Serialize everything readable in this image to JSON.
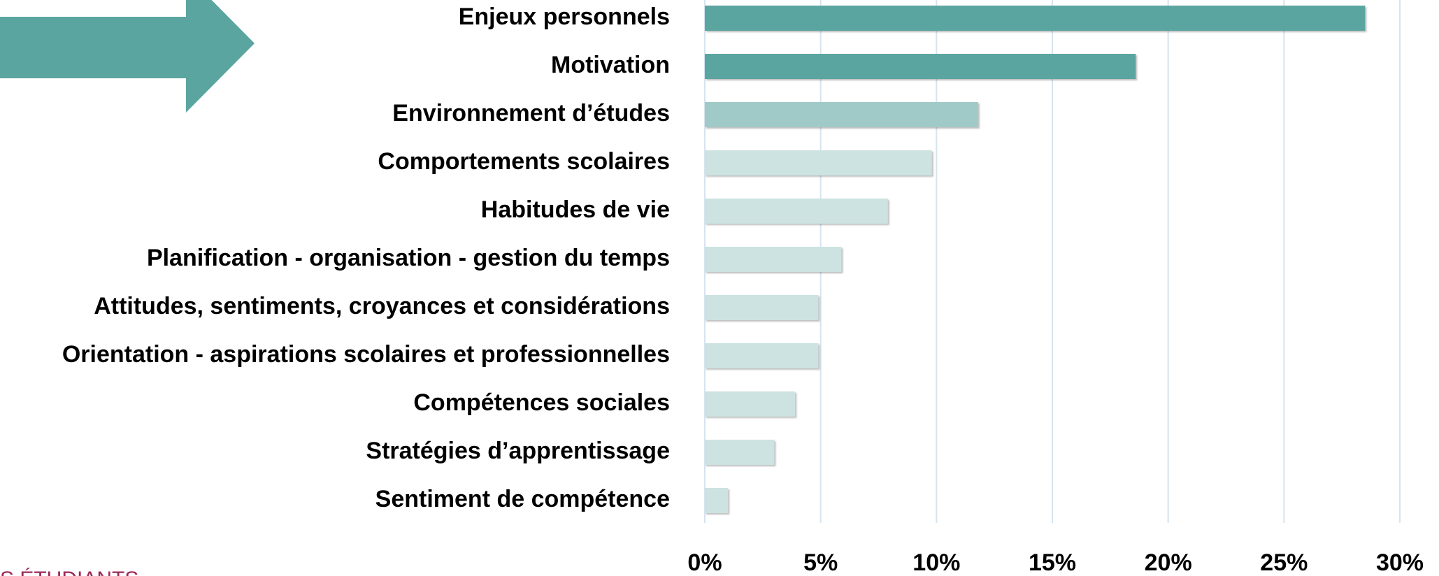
{
  "chart_data": {
    "type": "barh",
    "categories": [
      "Enjeux personnels",
      "Motivation",
      "Environnement d’études",
      "Comportements scolaires",
      "Habitudes de vie",
      "Planification - organisation - gestion du temps",
      "Attitudes, sentiments, croyances et considérations",
      "Orientation - aspirations scolaires et professionnelles",
      "Compétences sociales",
      "Stratégies d’apprentissage",
      "Sentiment de compétence"
    ],
    "values": [
      28.5,
      18.6,
      11.8,
      9.8,
      7.9,
      5.9,
      4.9,
      4.9,
      3.9,
      3.0,
      1.0
    ],
    "colors": [
      "#5ba5a0",
      "#5ba5a0",
      "#a0cac7",
      "#cce3e1",
      "#cce3e1",
      "#cce3e1",
      "#cce3e1",
      "#cce3e1",
      "#cce3e1",
      "#cce3e1",
      "#cce3e1"
    ],
    "xlim": [
      0,
      30
    ],
    "xticks": [
      {
        "value": 0,
        "label": "0%"
      },
      {
        "value": 5,
        "label": "5%"
      },
      {
        "value": 10,
        "label": "10%"
      },
      {
        "value": 15,
        "label": "15%"
      },
      {
        "value": 20,
        "label": "20%"
      },
      {
        "value": 25,
        "label": "25%"
      },
      {
        "value": 30,
        "label": "30%"
      }
    ],
    "grid": true,
    "footer_text": "S ÉTUDIANTS"
  }
}
